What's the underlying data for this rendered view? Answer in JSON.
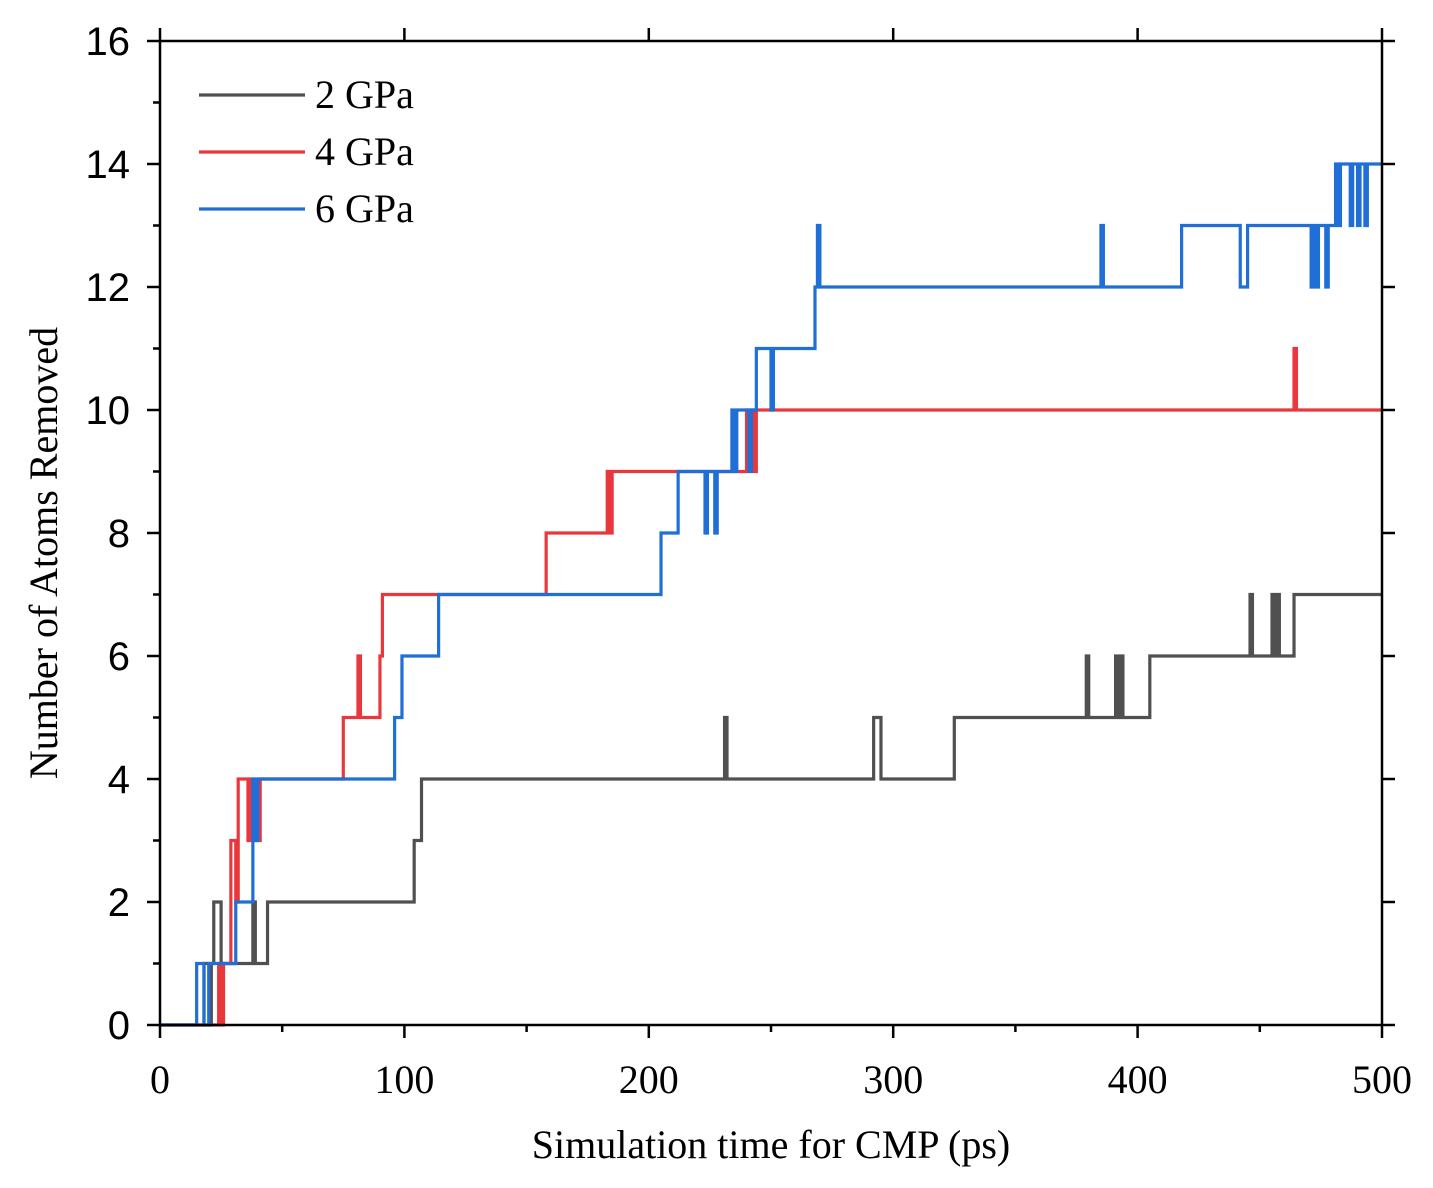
{
  "chart_data": {
    "type": "line",
    "title": "",
    "xlabel": "Simulation time for CMP (ps)",
    "ylabel": "Number of Atoms Removed",
    "xlim": [
      0,
      500
    ],
    "ylim": [
      0,
      16
    ],
    "xticks": [
      0,
      100,
      200,
      300,
      400,
      500
    ],
    "xtick_labels": [
      "0",
      "100",
      "200",
      "300",
      "400",
      "500"
    ],
    "yticks": [
      0,
      2,
      4,
      6,
      8,
      10,
      12,
      14,
      16
    ],
    "ytick_labels": [
      "0",
      "2",
      "4",
      "6",
      "8",
      "10",
      "12",
      "14",
      "16"
    ],
    "grid": false,
    "legend_position": "top-left",
    "series": [
      {
        "name": "2 GPa",
        "color": "#505050",
        "points": [
          [
            0,
            0
          ],
          [
            18,
            0
          ],
          [
            18,
            1
          ],
          [
            20,
            1
          ],
          [
            20,
            0
          ],
          [
            21,
            0
          ],
          [
            21,
            1
          ],
          [
            22,
            1
          ],
          [
            22,
            2
          ],
          [
            25,
            2
          ],
          [
            25,
            1
          ],
          [
            38,
            1
          ],
          [
            38,
            2
          ],
          [
            39,
            2
          ],
          [
            39,
            1
          ],
          [
            44,
            1
          ],
          [
            44,
            2
          ],
          [
            104,
            2
          ],
          [
            104,
            3
          ],
          [
            107,
            3
          ],
          [
            107,
            4
          ],
          [
            231,
            4
          ],
          [
            231,
            5
          ],
          [
            232,
            5
          ],
          [
            232,
            4
          ],
          [
            292,
            4
          ],
          [
            292,
            5
          ],
          [
            295,
            5
          ],
          [
            295,
            4
          ],
          [
            325,
            4
          ],
          [
            325,
            5
          ],
          [
            379,
            5
          ],
          [
            379,
            6
          ],
          [
            380,
            6
          ],
          [
            380,
            5
          ],
          [
            391,
            5
          ],
          [
            391,
            6
          ],
          [
            392,
            6
          ],
          [
            392,
            5
          ],
          [
            393,
            5
          ],
          [
            393,
            6
          ],
          [
            394,
            6
          ],
          [
            394,
            5
          ],
          [
            405,
            5
          ],
          [
            405,
            6
          ],
          [
            446,
            6
          ],
          [
            446,
            7
          ],
          [
            447,
            7
          ],
          [
            447,
            6
          ],
          [
            455,
            6
          ],
          [
            455,
            7
          ],
          [
            456,
            7
          ],
          [
            456,
            6
          ],
          [
            457,
            6
          ],
          [
            457,
            7
          ],
          [
            458,
            7
          ],
          [
            458,
            6
          ],
          [
            464,
            6
          ],
          [
            464,
            7
          ],
          [
            500,
            7
          ]
        ]
      },
      {
        "name": "4 GPa",
        "color": "#e8383d",
        "points": [
          [
            0,
            0
          ],
          [
            24,
            0
          ],
          [
            24,
            1
          ],
          [
            25,
            1
          ],
          [
            25,
            0
          ],
          [
            26,
            0
          ],
          [
            26,
            1
          ],
          [
            29,
            1
          ],
          [
            29,
            3
          ],
          [
            31,
            3
          ],
          [
            31,
            2
          ],
          [
            32,
            2
          ],
          [
            32,
            4
          ],
          [
            36,
            4
          ],
          [
            36,
            3
          ],
          [
            37,
            3
          ],
          [
            37,
            4
          ],
          [
            38,
            4
          ],
          [
            38,
            3
          ],
          [
            41,
            3
          ],
          [
            41,
            4
          ],
          [
            75,
            4
          ],
          [
            75,
            5
          ],
          [
            81,
            5
          ],
          [
            81,
            6
          ],
          [
            82,
            6
          ],
          [
            82,
            5
          ],
          [
            90,
            5
          ],
          [
            90,
            6
          ],
          [
            91,
            6
          ],
          [
            91,
            7
          ],
          [
            158,
            7
          ],
          [
            158,
            8
          ],
          [
            183,
            8
          ],
          [
            183,
            9
          ],
          [
            184,
            9
          ],
          [
            184,
            8
          ],
          [
            185,
            8
          ],
          [
            185,
            9
          ],
          [
            240,
            9
          ],
          [
            240,
            10
          ],
          [
            243,
            10
          ],
          [
            243,
            9
          ],
          [
            244,
            9
          ],
          [
            244,
            10
          ],
          [
            464,
            10
          ],
          [
            464,
            11
          ],
          [
            465,
            11
          ],
          [
            465,
            10
          ],
          [
            500,
            10
          ]
        ]
      },
      {
        "name": "6 GPa",
        "color": "#1f6fd6",
        "points": [
          [
            0,
            0
          ],
          [
            15,
            0
          ],
          [
            15,
            1
          ],
          [
            18,
            1
          ],
          [
            18,
            0
          ],
          [
            20,
            0
          ],
          [
            20,
            1
          ],
          [
            31,
            1
          ],
          [
            31,
            2
          ],
          [
            38,
            2
          ],
          [
            38,
            4
          ],
          [
            39,
            4
          ],
          [
            39,
            3
          ],
          [
            40,
            3
          ],
          [
            40,
            4
          ],
          [
            96,
            4
          ],
          [
            96,
            5
          ],
          [
            99,
            5
          ],
          [
            99,
            6
          ],
          [
            114,
            6
          ],
          [
            114,
            7
          ],
          [
            205,
            7
          ],
          [
            205,
            8
          ],
          [
            212,
            8
          ],
          [
            212,
            9
          ],
          [
            223,
            9
          ],
          [
            223,
            8
          ],
          [
            224,
            8
          ],
          [
            224,
            9
          ],
          [
            227,
            9
          ],
          [
            227,
            8
          ],
          [
            228,
            8
          ],
          [
            228,
            9
          ],
          [
            234,
            9
          ],
          [
            234,
            10
          ],
          [
            235,
            10
          ],
          [
            235,
            9
          ],
          [
            236,
            9
          ],
          [
            236,
            10
          ],
          [
            241,
            10
          ],
          [
            241,
            9
          ],
          [
            242,
            9
          ],
          [
            242,
            10
          ],
          [
            244,
            10
          ],
          [
            244,
            11
          ],
          [
            250,
            11
          ],
          [
            250,
            10
          ],
          [
            251,
            10
          ],
          [
            251,
            11
          ],
          [
            268,
            11
          ],
          [
            268,
            12
          ],
          [
            269,
            12
          ],
          [
            269,
            13
          ],
          [
            270,
            13
          ],
          [
            270,
            12
          ],
          [
            385,
            12
          ],
          [
            385,
            13
          ],
          [
            386,
            13
          ],
          [
            386,
            12
          ],
          [
            418,
            12
          ],
          [
            418,
            13
          ],
          [
            442,
            13
          ],
          [
            442,
            12
          ],
          [
            445,
            12
          ],
          [
            445,
            13
          ],
          [
            471,
            13
          ],
          [
            471,
            12
          ],
          [
            472,
            12
          ],
          [
            472,
            13
          ],
          [
            473,
            13
          ],
          [
            473,
            12
          ],
          [
            474,
            12
          ],
          [
            474,
            13
          ],
          [
            477,
            13
          ],
          [
            477,
            12
          ],
          [
            478,
            12
          ],
          [
            478,
            13
          ],
          [
            481,
            13
          ],
          [
            481,
            14
          ],
          [
            482,
            14
          ],
          [
            482,
            13
          ],
          [
            483,
            13
          ],
          [
            483,
            14
          ],
          [
            487,
            14
          ],
          [
            487,
            13
          ],
          [
            488,
            13
          ],
          [
            488,
            14
          ],
          [
            490,
            14
          ],
          [
            490,
            13
          ],
          [
            491,
            13
          ],
          [
            491,
            14
          ],
          [
            493,
            14
          ],
          [
            493,
            13
          ],
          [
            494,
            13
          ],
          [
            494,
            14
          ],
          [
            500,
            14
          ]
        ]
      }
    ]
  }
}
